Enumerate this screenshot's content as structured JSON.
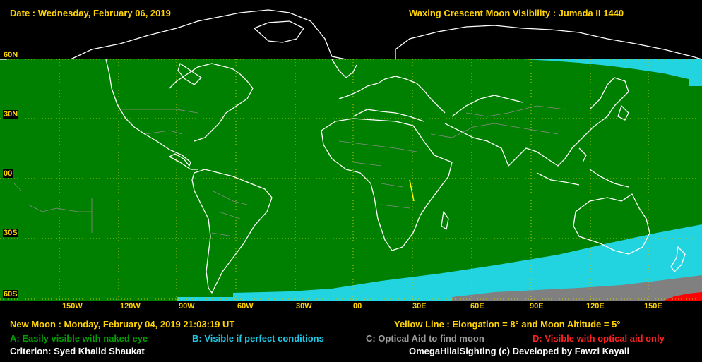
{
  "header": {
    "date": "Date : Wednesday, February 06, 2019",
    "title": "Waxing Crescent Moon Visibility : Jumada II 1440"
  },
  "lat_labels": [
    "60N",
    "30N",
    "00",
    "30S",
    "60S"
  ],
  "lon_labels": [
    "150W",
    "120W",
    "90W",
    "60W",
    "30W",
    "00",
    "30E",
    "60E",
    "90E",
    "120E",
    "150E"
  ],
  "footer": {
    "new_moon": "New Moon : Monday, February 04, 2019  21:03:19  UT",
    "yellow_line": "Yellow Line : Elongation = 8° and Moon Altitude = 5°",
    "criterion": "Criterion: Syed Khalid Shaukat",
    "credit": "OmegaHilalSighting  (c)  Developed by Fawzi Kayali"
  },
  "legend": [
    {
      "label": "A: Easily visible with naked eye",
      "color": "#00a000"
    },
    {
      "label": "B: Visible if perfect conditions",
      "color": "#1ec8e6"
    },
    {
      "label": "C: Optical Aid to find moon",
      "color": "#9a9a9a"
    },
    {
      "label": "D: Visible with optical aid only",
      "color": "#ff2020"
    }
  ],
  "colors": {
    "zone_a": "#008000",
    "zone_b": "#22d3e0",
    "zone_c": "#808080",
    "zone_d": "#ff0000",
    "coast": "#ffffff",
    "grid": "#c8c800",
    "label": "#ffd400"
  }
}
